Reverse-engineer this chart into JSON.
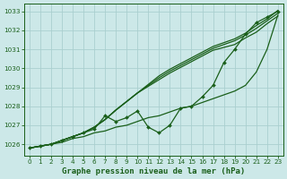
{
  "title": "Graphe pression niveau de la mer (hPa)",
  "bg_color": "#cce8e8",
  "grid_color": "#aacfcf",
  "line_color": "#1a5f1a",
  "xlim": [
    -0.5,
    23.5
  ],
  "ylim": [
    1025.4,
    1033.4
  ],
  "yticks": [
    1026,
    1027,
    1028,
    1029,
    1030,
    1031,
    1032,
    1033
  ],
  "xticks": [
    0,
    1,
    2,
    3,
    4,
    5,
    6,
    7,
    8,
    9,
    10,
    11,
    12,
    13,
    14,
    15,
    16,
    17,
    18,
    19,
    20,
    21,
    22,
    23
  ],
  "series_bottom": [
    1025.8,
    1025.9,
    1026.0,
    1026.1,
    1026.3,
    1026.4,
    1026.6,
    1026.7,
    1026.9,
    1027.0,
    1027.2,
    1027.4,
    1027.5,
    1027.7,
    1027.9,
    1028.0,
    1028.2,
    1028.4,
    1028.6,
    1028.8,
    1029.1,
    1029.8,
    1031.0,
    1032.8
  ],
  "series_zigzag": [
    1025.8,
    1025.9,
    1026.0,
    1026.2,
    1026.4,
    1026.6,
    1026.8,
    1027.5,
    1027.2,
    1027.4,
    1027.75,
    1026.9,
    1026.6,
    1027.0,
    1027.9,
    1028.0,
    1028.5,
    1029.1,
    1030.3,
    1031.0,
    1031.8,
    1032.4,
    1032.7,
    1033.0
  ],
  "series_a": [
    1025.8,
    1025.9,
    1026.0,
    1026.2,
    1026.4,
    1026.6,
    1026.9,
    1027.3,
    1027.8,
    1028.25,
    1028.7,
    1029.05,
    1029.4,
    1029.75,
    1030.05,
    1030.35,
    1030.65,
    1030.95,
    1031.1,
    1031.25,
    1031.6,
    1031.9,
    1032.35,
    1032.75
  ],
  "series_b": [
    1025.8,
    1025.9,
    1026.0,
    1026.2,
    1026.4,
    1026.6,
    1026.9,
    1027.3,
    1027.8,
    1028.25,
    1028.7,
    1029.1,
    1029.5,
    1029.85,
    1030.15,
    1030.45,
    1030.75,
    1031.05,
    1031.25,
    1031.45,
    1031.75,
    1032.1,
    1032.5,
    1032.9
  ],
  "series_c": [
    1025.8,
    1025.9,
    1026.0,
    1026.2,
    1026.4,
    1026.6,
    1026.9,
    1027.3,
    1027.8,
    1028.25,
    1028.7,
    1029.15,
    1029.6,
    1029.95,
    1030.25,
    1030.55,
    1030.85,
    1031.15,
    1031.35,
    1031.55,
    1031.85,
    1032.25,
    1032.6,
    1033.05
  ]
}
